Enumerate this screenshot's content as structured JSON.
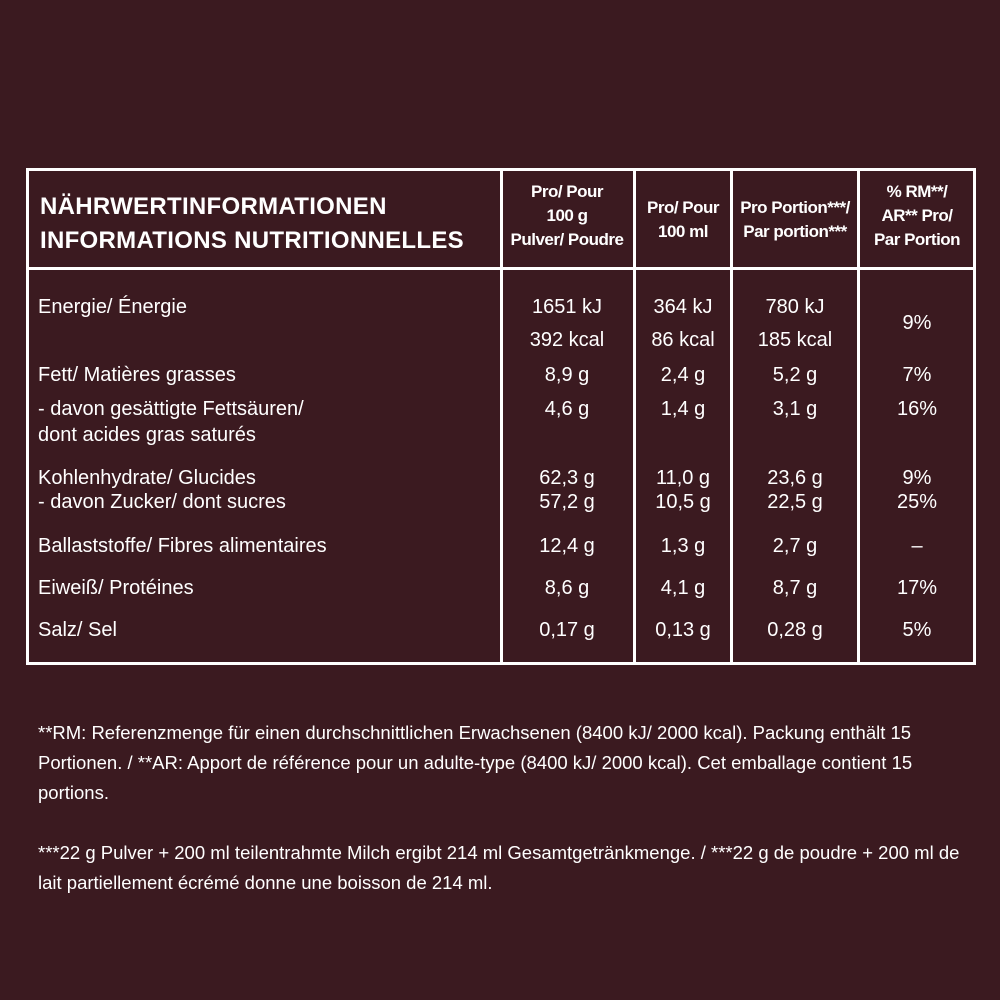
{
  "colors": {
    "background": "#3b1a20",
    "text": "#ffffff",
    "border": "#ffffff"
  },
  "header": {
    "title_de": "NÄHRWERTINFORMATIONEN",
    "title_fr": "INFORMATIONS NUTRITIONNELLES",
    "columns": [
      {
        "lines": [
          "Pro/ Pour",
          "100 g",
          "Pulver/ Poudre"
        ]
      },
      {
        "lines": [
          "Pro/ Pour",
          "100 ml"
        ]
      },
      {
        "lines": [
          "Pro Portion***/",
          "Par portion***"
        ]
      },
      {
        "lines": [
          "% RM**/",
          "AR** Pro/",
          "Par Portion"
        ]
      }
    ]
  },
  "rows": [
    {
      "label": [
        "Energie/ Énergie"
      ],
      "values": [
        "1651 kJ",
        "364 kJ",
        "780 kJ"
      ],
      "values2": [
        "392 kcal",
        "86 kcal",
        "185 kcal"
      ],
      "ri": "9%"
    },
    {
      "label": [
        "Fett/ Matières grasses"
      ],
      "values": [
        "8,9 g",
        "2,4 g",
        "5,2 g"
      ],
      "ri": "7%"
    },
    {
      "label": [
        "- davon gesättigte Fettsäuren/",
        "dont acides gras saturés"
      ],
      "values": [
        "4,6 g",
        "1,4 g",
        "3,1 g"
      ],
      "ri": "16%"
    },
    {
      "label": [
        "Kohlenhydrate/ Glucides"
      ],
      "values": [
        "62,3 g",
        "11,0 g",
        "23,6 g"
      ],
      "ri": "9%"
    },
    {
      "label": [
        "- davon Zucker/ dont sucres"
      ],
      "values": [
        "57,2 g",
        "10,5 g",
        "22,5 g"
      ],
      "ri": "25%"
    },
    {
      "label": [
        "Ballaststoffe/ Fibres alimentaires"
      ],
      "values": [
        "12,4 g",
        "1,3 g",
        "2,7 g"
      ],
      "ri": "–"
    },
    {
      "label": [
        "Eiweiß/ Protéines"
      ],
      "values": [
        "8,6 g",
        "4,1 g",
        "8,7 g"
      ],
      "ri": "17%"
    },
    {
      "label": [
        "Salz/ Sel"
      ],
      "values": [
        "0,17 g",
        "0,13 g",
        "0,28 g"
      ],
      "ri": "5%"
    }
  ],
  "footnotes": [
    "**RM: Referenzmenge für einen durchschnittlichen Erwachsenen (8400 kJ/ 2000 kcal). Packung enthält 15 Portionen. / **AR: Apport de référence pour un adulte-type (8400 kJ/ 2000 kcal). Cet emballage contient 15 portions.",
    "***22 g Pulver + 200 ml teilentrahmte Milch ergibt 214 ml Gesamtgetränkmenge. / ***22 g de poudre + 200 ml de lait partiellement écrémé donne une boisson de 214 ml."
  ]
}
